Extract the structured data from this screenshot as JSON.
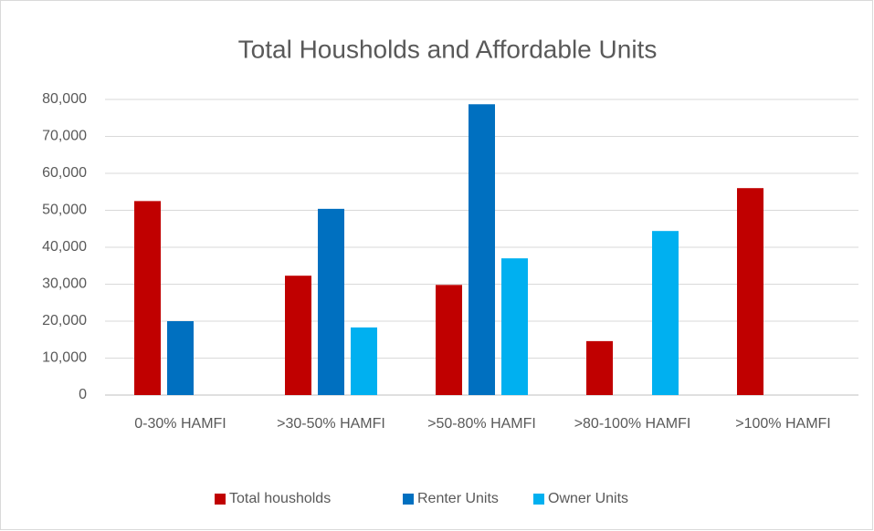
{
  "chart_data": {
    "type": "bar",
    "title": "Total Housholds and Affordable Units",
    "categories": [
      "0-30% HAMFI",
      ">30-50% HAMFI",
      ">50-80% HAMFI",
      ">80-100% HAMFI",
      ">100% HAMFI"
    ],
    "series": [
      {
        "name": "Total housholds",
        "color": "#c00000",
        "values": [
          52500,
          32300,
          29800,
          14600,
          56000
        ]
      },
      {
        "name": "Renter Units",
        "color": "#0070c0",
        "values": [
          20000,
          50400,
          78700,
          0,
          0
        ]
      },
      {
        "name": "Owner Units",
        "color": "#00b0f0",
        "values": [
          0,
          18300,
          37000,
          44400,
          0
        ]
      }
    ],
    "ylim": [
      0,
      80000
    ],
    "yticks": [
      0,
      {
        "value": 10000,
        "label": "10,000"
      },
      {
        "value": 20000,
        "label": "20,000"
      },
      {
        "value": 30000,
        "label": "30,000"
      },
      {
        "value": 40000,
        "label": "40,000"
      },
      {
        "value": 50000,
        "label": "50,000"
      },
      {
        "value": 60000,
        "label": "60,000"
      },
      {
        "value": 70000,
        "label": "70,000"
      },
      {
        "value": 80000,
        "label": "80,000"
      }
    ],
    "grid": true,
    "legend": "bottom"
  }
}
